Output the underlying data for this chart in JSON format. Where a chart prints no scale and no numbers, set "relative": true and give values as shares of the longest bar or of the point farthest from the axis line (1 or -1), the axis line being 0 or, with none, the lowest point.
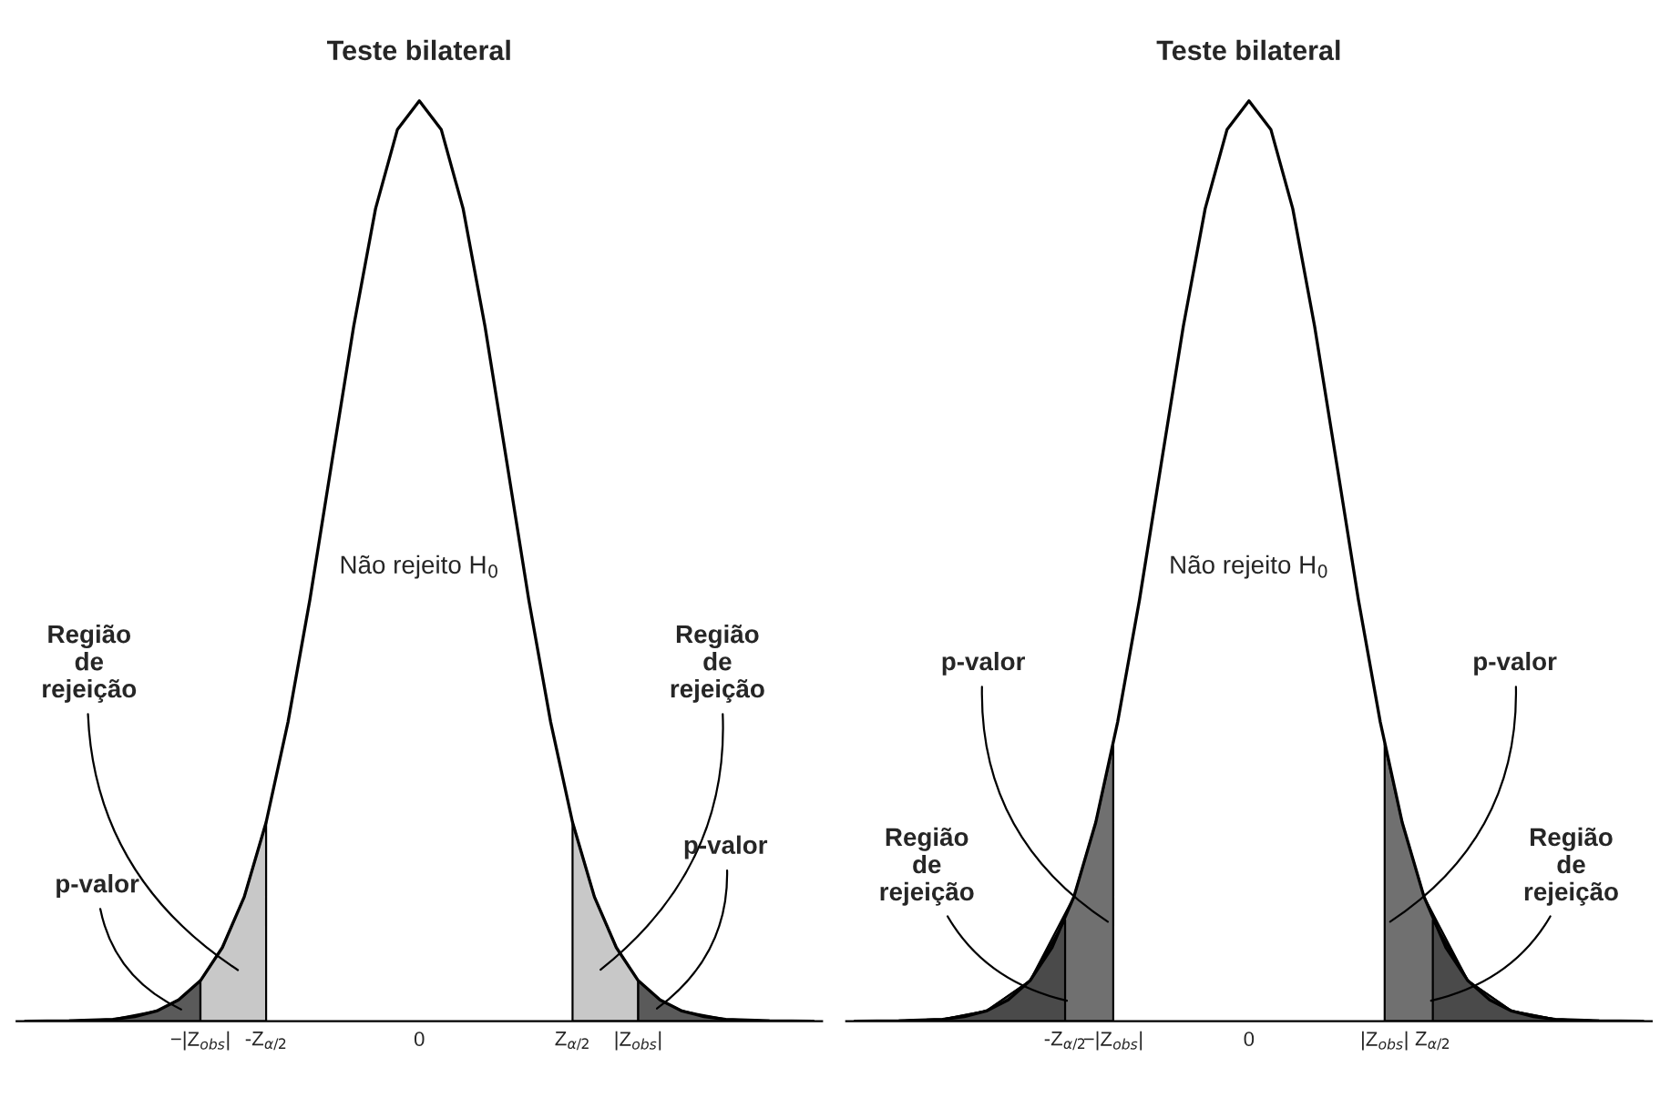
{
  "chart_data": [
    {
      "type": "line",
      "title": "Teste bilateral",
      "relative": true,
      "tick_labels": "x",
      "grid": false,
      "xlim": [
        -4.6,
        4.6
      ],
      "xticks": [
        {
          "value": -2.5,
          "label": "−|Z$_{obs}$|"
        },
        {
          "value": -1.75,
          "label": "-Z$_{α/2}$"
        },
        0,
        {
          "value": 1.75,
          "label": "Z$_{α/2}$"
        },
        {
          "value": 2.5,
          "label": "|Z$_{obs}$|"
        }
      ],
      "series": [
        {
          "type": "area",
          "color": "#5a5a5a",
          "x": [
            -4.5,
            -4,
            -3.5,
            -3,
            -2.75,
            -2.5
          ],
          "values": [
            0,
            0.0003,
            0.002,
            0.011,
            0.023,
            0.044
          ]
        },
        {
          "type": "area",
          "color": "#c8c8c8",
          "x": [
            -2.5,
            -2.25,
            -2,
            -1.75
          ],
          "values": [
            0.044,
            0.08,
            0.135,
            0.216
          ]
        },
        {
          "type": "area",
          "color": "#c8c8c8",
          "x": [
            1.75,
            2,
            2.25,
            2.5
          ],
          "values": [
            0.216,
            0.135,
            0.08,
            0.044
          ]
        },
        {
          "type": "area",
          "color": "#5a5a5a",
          "x": [
            2.5,
            2.75,
            3,
            3.5,
            4,
            4.5
          ],
          "values": [
            0.044,
            0.023,
            0.011,
            0.002,
            0.0003,
            0
          ]
        },
        {
          "color": "#000000",
          "x": [
            -4.5,
            -4,
            -3.5,
            -3.25,
            -3,
            -2.75,
            -2.5,
            -2.25,
            -2,
            -1.75,
            -1.5,
            -1.25,
            -1,
            -0.75,
            -0.5,
            -0.25,
            0,
            0.25,
            0.5,
            0.75,
            1,
            1.25,
            1.5,
            1.75,
            2,
            2.25,
            2.5,
            2.75,
            3,
            3.25,
            3.5,
            4,
            4.5
          ],
          "values": [
            0,
            0.0003,
            0.002,
            0.005,
            0.011,
            0.023,
            0.044,
            0.08,
            0.135,
            0.216,
            0.325,
            0.458,
            0.607,
            0.755,
            0.883,
            0.969,
            1,
            0.969,
            0.883,
            0.755,
            0.607,
            0.458,
            0.325,
            0.216,
            0.135,
            0.08,
            0.044,
            0.023,
            0.011,
            0.005,
            0.002,
            0.0003,
            0
          ]
        }
      ],
      "annotations": [
        "Não rejeito H$_{0}$",
        "Região\nde\nrejeição",
        "p-valor",
        "Região\nde\nrejeição",
        "p-valor"
      ]
    },
    {
      "type": "line",
      "title": "Teste bilateral",
      "relative": true,
      "tick_labels": "x",
      "grid": false,
      "xlim": [
        -4.6,
        4.6
      ],
      "xticks": [
        {
          "value": -2.1,
          "label": "-Z$_{α/2}$"
        },
        {
          "value": -1.55,
          "label": "−|Z$_{obs}$|"
        },
        0,
        {
          "value": 1.55,
          "label": "|Z$_{obs}$|"
        },
        {
          "value": 2.1,
          "label": "Z$_{α/2}$"
        }
      ],
      "series": [
        {
          "type": "area",
          "color": "#707070",
          "x": [
            -4.5,
            -4,
            -3.5,
            -3,
            -2.5,
            -2,
            -1.75,
            -1.55
          ],
          "values": [
            0,
            0.0003,
            0.002,
            0.011,
            0.044,
            0.135,
            0.216,
            0.301
          ]
        },
        {
          "type": "area",
          "color": "#4a4a4a",
          "x": [
            -4.5,
            -4,
            -3.5,
            -3,
            -2.5,
            -2.1
          ],
          "values": [
            0,
            0.0003,
            0.002,
            0.011,
            0.044,
            0.11
          ]
        },
        {
          "type": "area",
          "color": "#707070",
          "x": [
            1.55,
            1.75,
            2,
            2.5,
            3,
            3.5,
            4,
            4.5
          ],
          "values": [
            0.301,
            0.216,
            0.135,
            0.044,
            0.011,
            0.002,
            0.0003,
            0
          ]
        },
        {
          "type": "area",
          "color": "#4a4a4a",
          "x": [
            2.1,
            2.5,
            3,
            3.5,
            4,
            4.5
          ],
          "values": [
            0.11,
            0.044,
            0.011,
            0.002,
            0.0003,
            0
          ]
        },
        {
          "color": "#000000",
          "x": [
            -4.5,
            -4,
            -3.5,
            -3.25,
            -3,
            -2.75,
            -2.5,
            -2.25,
            -2,
            -1.75,
            -1.5,
            -1.25,
            -1,
            -0.75,
            -0.5,
            -0.25,
            0,
            0.25,
            0.5,
            0.75,
            1,
            1.25,
            1.5,
            1.75,
            2,
            2.25,
            2.5,
            2.75,
            3,
            3.25,
            3.5,
            4,
            4.5
          ],
          "values": [
            0,
            0.0003,
            0.002,
            0.005,
            0.011,
            0.023,
            0.044,
            0.08,
            0.135,
            0.216,
            0.325,
            0.458,
            0.607,
            0.755,
            0.883,
            0.969,
            1,
            0.969,
            0.883,
            0.755,
            0.607,
            0.458,
            0.325,
            0.216,
            0.135,
            0.08,
            0.044,
            0.023,
            0.011,
            0.005,
            0.002,
            0.0003,
            0
          ]
        }
      ],
      "annotations": [
        "Não rejeito H$_{0}$",
        "p-valor",
        "Região\nde\nrejeição",
        "p-valor",
        "Região\nde\nrejeição"
      ]
    }
  ]
}
